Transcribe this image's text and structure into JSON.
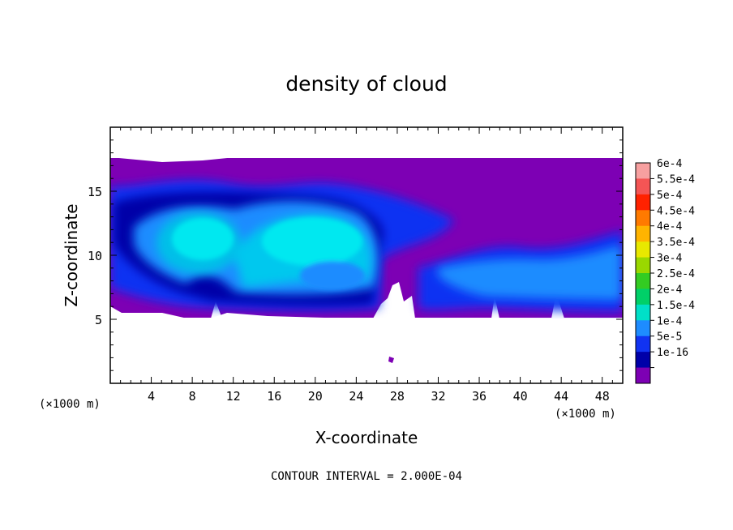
{
  "chart_data": {
    "type": "heatmap",
    "title": "density of cloud",
    "xlabel": "X-coordinate",
    "ylabel": "Z-coordinate",
    "x_unit": "(×1000 m)",
    "z_unit": "(×1000 m)",
    "x_ticks": [
      4,
      8,
      12,
      16,
      20,
      24,
      28,
      32,
      36,
      40,
      44,
      48
    ],
    "y_ticks": [
      5,
      10,
      15
    ],
    "xlim": [
      0,
      50
    ],
    "ylim": [
      0,
      20
    ],
    "footer": "CONTOUR INTERVAL = 2.000E-04",
    "colorbar": {
      "labels": [
        "6e-4",
        "5.5e-4",
        "5e-4",
        "4.5e-4",
        "4e-4",
        "3.5e-4",
        "3e-4",
        "2.5e-4",
        "2e-4",
        "1.5e-4",
        "1e-4",
        "5e-5",
        "1e-16"
      ],
      "colors": [
        "#f7a0a0",
        "#f45555",
        "#ff2200",
        "#ff7a00",
        "#ffb400",
        "#e8e800",
        "#9ad800",
        "#33cc22",
        "#00d068",
        "#00e0c8",
        "#1e8cff",
        "#1133f2",
        "#0000a8",
        "#7d00b4"
      ]
    },
    "regions": [
      {
        "level": "1e-16",
        "color": "#7d00b4",
        "x_range": [
          0,
          50
        ],
        "z_range": [
          5.5,
          17.5
        ]
      },
      {
        "level": "5e-5",
        "color": "#1133f2",
        "x_range": [
          0,
          28
        ],
        "z_range": [
          6,
          16
        ]
      },
      {
        "level": "1.5e-4",
        "color": "#00e0c8",
        "x_range": [
          3,
          27
        ],
        "z_range": [
          8,
          14
        ]
      },
      {
        "level": "5e-5",
        "color": "#1133f2",
        "x_range": [
          29,
          50
        ],
        "z_range": [
          6,
          10
        ]
      }
    ]
  }
}
